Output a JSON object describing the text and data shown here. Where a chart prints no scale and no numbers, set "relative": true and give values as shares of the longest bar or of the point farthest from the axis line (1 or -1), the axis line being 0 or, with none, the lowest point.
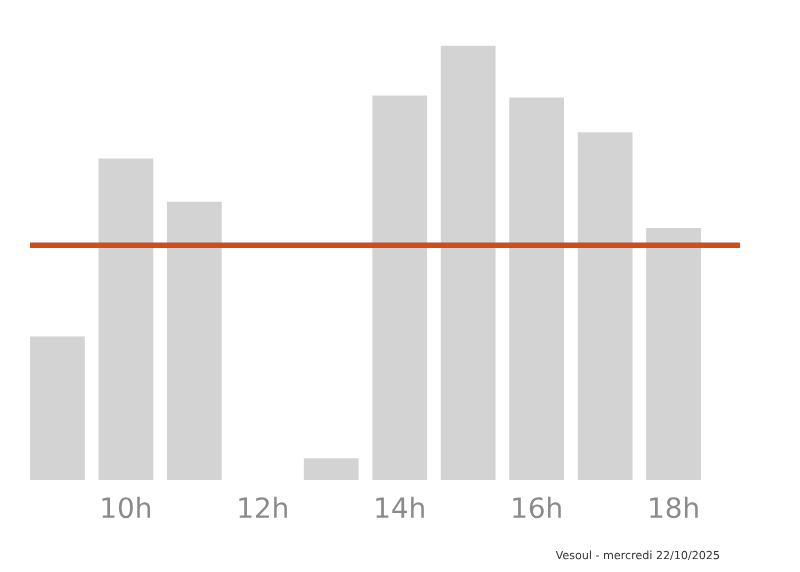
{
  "chart_data": {
    "type": "bar",
    "relative": true,
    "categories": [
      null,
      "10h",
      null,
      "12h",
      null,
      "14h",
      null,
      "16h",
      null,
      "18h"
    ],
    "values": [
      0.33,
      0.74,
      0.64,
      0,
      0.05,
      0.885,
      1,
      0.88,
      0.8,
      0.58
    ],
    "color": "#d3d3d3",
    "ref_lines": [
      {
        "axis": "y",
        "value": 0.54,
        "color": "#c9501c"
      }
    ],
    "annotations": [
      "Vesoul - mercredi 22/10/2025"
    ],
    "grid": false,
    "legend": false
  }
}
